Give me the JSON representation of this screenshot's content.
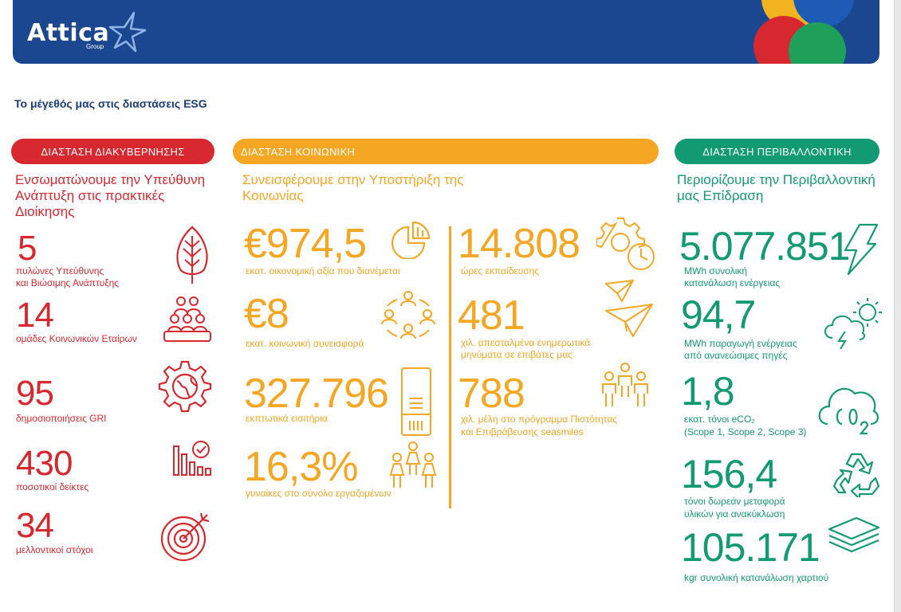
{
  "header": {
    "logo_text": "Attica",
    "logo_sub": "Group"
  },
  "page_title": "Το μέγεθός μας στις διαστάσεις ESG",
  "colors": {
    "governance": "#d7282f",
    "social": "#f5a623",
    "environmental": "#129a72",
    "header_bg": "#1a4790",
    "title": "#1a3a78"
  },
  "governance": {
    "label": "ΔΙΑΣΤΑΣΗ ΔΙΑΚΥΒΕΡΝΗΣΗΣ",
    "heading": "Ενσωματώνουμε την Υπεύθυνη Ανάπτυξη στις πρακτικές Διοίκησης",
    "stats": [
      {
        "value": "5",
        "line1": "πυλώνες Υπεύθυνης",
        "line2": "και Βιώσιμης Ανάπτυξης",
        "icon": "tree-icon"
      },
      {
        "value": "14",
        "line1": "ομάδες Κοινωνικών Εταίρων",
        "line2": "",
        "icon": "people-group-icon"
      },
      {
        "value": "95",
        "line1": "δημοσιοποιήσεις GRI",
        "line2": "",
        "icon": "gear-globe-icon"
      },
      {
        "value": "430",
        "line1": "ποσοτικοί δείκτες",
        "line2": "",
        "icon": "bar-chart-check-icon"
      },
      {
        "value": "34",
        "line1": "μελλοντικοί στόχοι",
        "line2": "",
        "icon": "target-icon"
      }
    ]
  },
  "social": {
    "label": "ΔΙΑΣΤΑΣΗ ΚΟΙΝΩΝΙΚΗ",
    "heading": "Συνεισφέρουμε στην Υποστήριξη της Κοινωνίας",
    "left_stats": [
      {
        "value": "€974,5",
        "line1": "εκατ. οικονομική αξία που διανέμεται",
        "line2": "",
        "icon": "pie-chart-icon"
      },
      {
        "value": "€8",
        "line1": "εκατ. κοινωνική συνεισφορά",
        "line2": "",
        "icon": "community-network-icon"
      },
      {
        "value": "327.796",
        "line1": "εκπτωτικά εισιτήρια",
        "line2": "",
        "icon": "ticket-icon"
      },
      {
        "value": "16,3%",
        "line1": "γυναίκες στο σύνολο εργαζομένων",
        "line2": "",
        "icon": "women-group-icon"
      }
    ],
    "right_stats": [
      {
        "value": "14.808",
        "line1": "ώρες εκπαίδευσης",
        "line2": "",
        "icon": "gear-clock-icon"
      },
      {
        "value": "481",
        "line1": "χιλ. απεσταλμένα ενημερωτικά",
        "line2": "μηνύματα σε επιβάτες μας",
        "icon": "paper-plane-icon"
      },
      {
        "value": "788",
        "line1": "χιλ. μέλη στο πρόγραμμα Πιστότητας",
        "line2": "και Επιβράβευσης seasmiles",
        "icon": "members-group-icon"
      }
    ]
  },
  "environmental": {
    "label": "ΔΙΑΣΤΑΣΗ ΠΕΡΙΒΑΛΛΟΝΤΙΚΗ",
    "heading": "Περιορίζουμε την Περιβαλλοντική μας Επίδραση",
    "stats": [
      {
        "value": "5.077.851",
        "line1": "MWh συνολική",
        "line2": "κατανάλωση ενέργειας",
        "icon": "lightning-icon"
      },
      {
        "value": "94,7",
        "line1": "MWh παραγωγή ενέργειας",
        "line2": "από ανανεώσιμες πηγές",
        "icon": "sun-cloud-bolt-icon"
      },
      {
        "value": "1,8",
        "line1": "εκατ. τόνοι eCO₂",
        "line2": "(Scope 1, Scope 2, Scope 3)",
        "icon": "co2-cloud-icon"
      },
      {
        "value": "156,4",
        "line1": "τόνοι δωρεάν μεταφορά",
        "line2": "υλικών για ανακύκλωση",
        "icon": "recycle-icon"
      },
      {
        "value": "105.171",
        "line1": "kgr συνολική κατανάλωση χαρτιού",
        "line2": "",
        "icon": "paper-stack-icon"
      }
    ]
  }
}
